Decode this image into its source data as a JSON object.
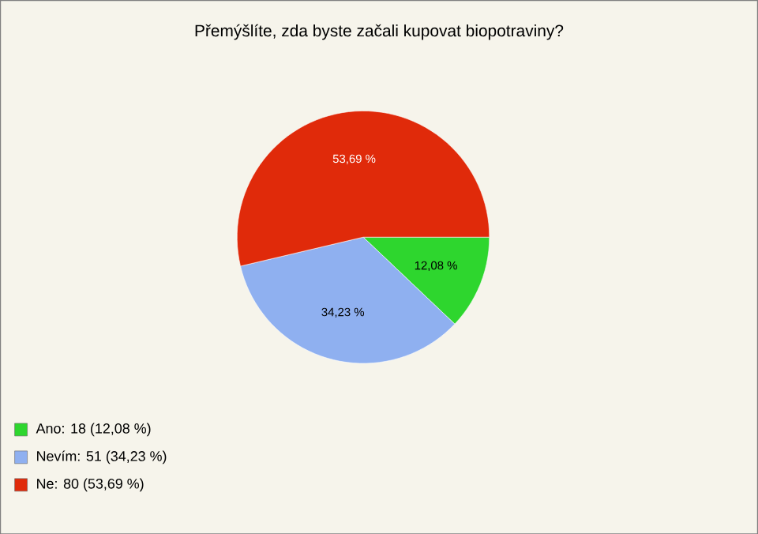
{
  "chart_data": {
    "type": "pie",
    "title": "Přemýšlíte, zda byste začali kupovat biopotraviny?",
    "categories": [
      "Ano: 18 (12,08 %)",
      "Nevím: 51 (34,23 %)",
      "Ne: 80 (53,69 %)"
    ],
    "values": [
      12.08,
      34.23,
      53.69
    ],
    "colors": [
      "#2ed62e",
      "#8fb0f0",
      "#e02a0a"
    ],
    "value_labels": [
      "12,08 %",
      "34,23 %",
      "53,69 %"
    ],
    "legend": "bottom left"
  }
}
